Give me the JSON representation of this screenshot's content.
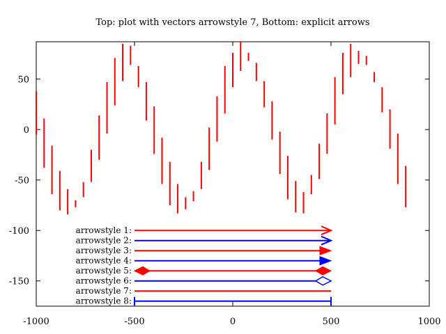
{
  "chart_data": {
    "type": "line",
    "title": "Top: plot with vectors arrowstyle 7, Bottom: explicit arrows",
    "xlabel": "",
    "ylabel": "",
    "xlim": [
      -1000,
      1000
    ],
    "ylim": [
      -175,
      87
    ],
    "xticks": [
      -1000,
      -500,
      0,
      500,
      1000
    ],
    "xtick_labels": [
      "-1000",
      "-500",
      "0",
      "500",
      "1000"
    ],
    "yticks": [
      50,
      0,
      -50,
      -100,
      -150
    ],
    "ytick_labels": [
      "50",
      "0",
      "-50",
      "-100",
      "-150"
    ],
    "grid": false,
    "series": [
      {
        "style": "vectors",
        "arrowstyle": 7,
        "color": "#ff0000",
        "segments": [
          {
            "x": -1000,
            "y1": -5,
            "y2": 38
          },
          {
            "x": -960,
            "y1": -38,
            "y2": 11
          },
          {
            "x": -920,
            "y1": -64,
            "y2": -16
          },
          {
            "x": -880,
            "y1": -80,
            "y2": -41
          },
          {
            "x": -840,
            "y1": -84,
            "y2": -59
          },
          {
            "x": -800,
            "y1": -77,
            "y2": -70
          },
          {
            "x": -760,
            "y1": -67,
            "y2": -52
          },
          {
            "x": -720,
            "y1": -52,
            "y2": -20
          },
          {
            "x": -680,
            "y1": -30,
            "y2": 14
          },
          {
            "x": -640,
            "y1": -4,
            "y2": 47
          },
          {
            "x": -600,
            "y1": 24,
            "y2": 71
          },
          {
            "x": -560,
            "y1": 48,
            "y2": 85
          },
          {
            "x": -520,
            "y1": 64,
            "y2": 83
          },
          {
            "x": -480,
            "y1": 42,
            "y2": 63
          },
          {
            "x": -440,
            "y1": 9,
            "y2": 47
          },
          {
            "x": -400,
            "y1": -24,
            "y2": 23
          },
          {
            "x": -360,
            "y1": -54,
            "y2": -8
          },
          {
            "x": -320,
            "y1": -75,
            "y2": -32
          },
          {
            "x": -280,
            "y1": -83,
            "y2": -54
          },
          {
            "x": -240,
            "y1": -79,
            "y2": -67
          },
          {
            "x": -200,
            "y1": -71,
            "y2": -61
          },
          {
            "x": -160,
            "y1": -59,
            "y2": -32
          },
          {
            "x": -120,
            "y1": -40,
            "y2": 2
          },
          {
            "x": -80,
            "y1": -12,
            "y2": 33
          },
          {
            "x": -40,
            "y1": 16,
            "y2": 63
          },
          {
            "x": 0,
            "y1": 42,
            "y2": 76
          },
          {
            "x": 40,
            "y1": 58,
            "y2": 87
          },
          {
            "x": 80,
            "y1": 68,
            "y2": 76
          },
          {
            "x": 120,
            "y1": 48,
            "y2": 66
          },
          {
            "x": 160,
            "y1": 22,
            "y2": 48
          },
          {
            "x": 200,
            "y1": -10,
            "y2": 28
          },
          {
            "x": 240,
            "y1": -44,
            "y2": -2
          },
          {
            "x": 280,
            "y1": -69,
            "y2": -26
          },
          {
            "x": 320,
            "y1": -82,
            "y2": -51
          },
          {
            "x": 360,
            "y1": -83,
            "y2": -62
          },
          {
            "x": 400,
            "y1": -64,
            "y2": -45
          },
          {
            "x": 440,
            "y1": -49,
            "y2": -14
          },
          {
            "x": 480,
            "y1": -24,
            "y2": 16
          },
          {
            "x": 520,
            "y1": 5,
            "y2": 52
          },
          {
            "x": 560,
            "y1": 35,
            "y2": 76
          },
          {
            "x": 600,
            "y1": 52,
            "y2": 85
          },
          {
            "x": 640,
            "y1": 65,
            "y2": 78
          },
          {
            "x": 680,
            "y1": 64,
            "y2": 73
          },
          {
            "x": 720,
            "y1": 47,
            "y2": 57
          },
          {
            "x": 760,
            "y1": 17,
            "y2": 42
          },
          {
            "x": 800,
            "y1": -19,
            "y2": 20
          },
          {
            "x": 840,
            "y1": -54,
            "y2": -4
          },
          {
            "x": 880,
            "y1": -77,
            "y2": -36
          }
        ]
      }
    ],
    "annotations": [
      {
        "label": "arrowstyle 1:",
        "style": 1,
        "color": "#ff0000",
        "x_start": -500,
        "x_end": 500,
        "y": -100
      },
      {
        "label": "arrowstyle 2:",
        "style": 2,
        "color": "#0000ff",
        "x_start": -500,
        "x_end": 500,
        "y": -110
      },
      {
        "label": "arrowstyle 3:",
        "style": 3,
        "color": "#ff0000",
        "x_start": -500,
        "x_end": 500,
        "y": -120
      },
      {
        "label": "arrowstyle 4:",
        "style": 4,
        "color": "#0000ff",
        "x_start": -500,
        "x_end": 500,
        "y": -130
      },
      {
        "label": "arrowstyle 5:",
        "style": 5,
        "color": "#ff0000",
        "x_start": -500,
        "x_end": 500,
        "y": -140
      },
      {
        "label": "arrowstyle 6:",
        "style": 6,
        "color": "#0000ff",
        "x_start": -500,
        "x_end": 500,
        "y": -150
      },
      {
        "label": "arrowstyle 7:",
        "style": 7,
        "color": "#ff0000",
        "x_start": -500,
        "x_end": 500,
        "y": -160
      },
      {
        "label": "arrowstyle 8:",
        "style": 8,
        "color": "#0000ff",
        "x_start": -500,
        "x_end": 500,
        "y": -170
      }
    ]
  }
}
